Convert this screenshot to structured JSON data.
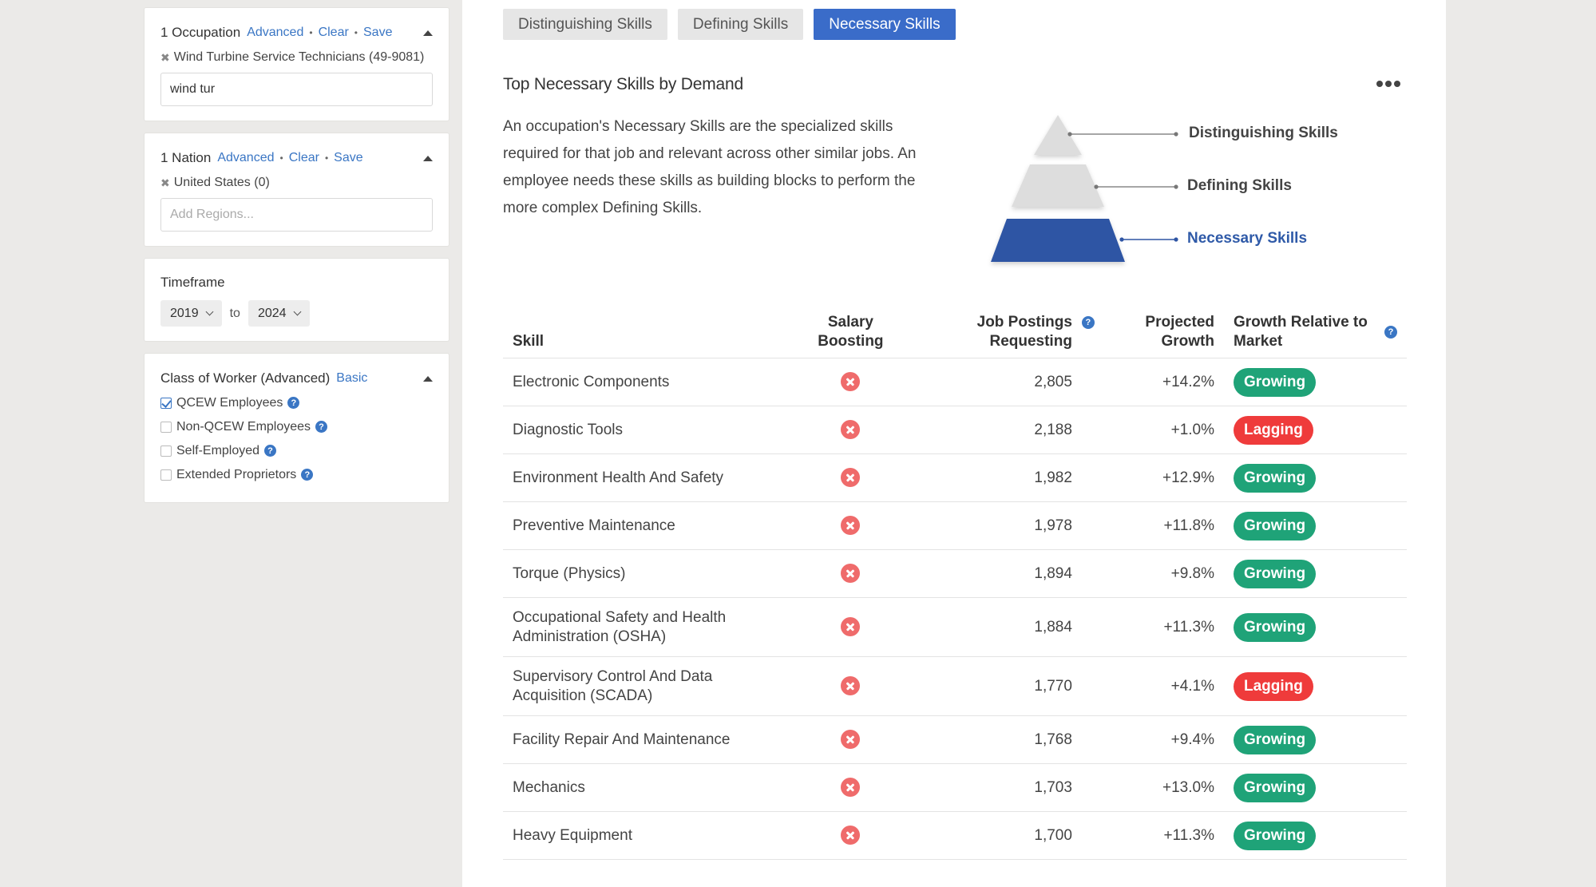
{
  "sidebar": {
    "occupation": {
      "title": "1 Occupation",
      "advanced": "Advanced",
      "clear": "Clear",
      "save": "Save",
      "selected": "Wind Turbine Service Technicians (49-9081)",
      "input_value": "wind tur"
    },
    "region": {
      "title": "1 Nation",
      "advanced": "Advanced",
      "clear": "Clear",
      "save": "Save",
      "selected": "United States (0)",
      "input_placeholder": "Add Regions..."
    },
    "timeframe": {
      "label": "Timeframe",
      "from": "2019",
      "to_label": "to",
      "to": "2024"
    },
    "class_of_worker": {
      "title": "Class of Worker (Advanced)",
      "basic": "Basic",
      "options": [
        {
          "label": "QCEW Employees",
          "checked": true
        },
        {
          "label": "Non-QCEW Employees",
          "checked": false
        },
        {
          "label": "Self-Employed",
          "checked": false
        },
        {
          "label": "Extended Proprietors",
          "checked": false
        }
      ]
    }
  },
  "main": {
    "tabs": [
      {
        "label": "Distinguishing Skills",
        "active": false
      },
      {
        "label": "Defining Skills",
        "active": false
      },
      {
        "label": "Necessary Skills",
        "active": true
      }
    ],
    "section_title": "Top Necessary Skills by Demand",
    "description": "An occupation's Necessary Skills are the specialized skills required for that job and relevant across other similar jobs. An employee needs these skills as building blocks to perform the more complex Defining Skills.",
    "pyramid": {
      "levels": [
        {
          "label": "Distinguishing Skills",
          "color": "#dddddd"
        },
        {
          "label": "Defining Skills",
          "color": "#dddddd"
        },
        {
          "label": "Necessary Skills",
          "color": "#2f55a4"
        }
      ]
    },
    "table": {
      "headers": {
        "skill": "Skill",
        "salary": "Salary Boosting",
        "postings": "Job Postings Requesting",
        "growth": "Projected Growth",
        "market": "Growth Relative to Market"
      },
      "rows": [
        {
          "skill": "Electronic Components",
          "postings": "2,805",
          "growth": "+14.2%",
          "market": "Growing"
        },
        {
          "skill": "Diagnostic Tools",
          "postings": "2,188",
          "growth": "+1.0%",
          "market": "Lagging"
        },
        {
          "skill": "Environment Health And Safety",
          "postings": "1,982",
          "growth": "+12.9%",
          "market": "Growing"
        },
        {
          "skill": "Preventive Maintenance",
          "postings": "1,978",
          "growth": "+11.8%",
          "market": "Growing"
        },
        {
          "skill": "Torque (Physics)",
          "postings": "1,894",
          "growth": "+9.8%",
          "market": "Growing"
        },
        {
          "skill": "Occupational Safety and Health Administration (OSHA)",
          "postings": "1,884",
          "growth": "+11.3%",
          "market": "Growing"
        },
        {
          "skill": "Supervisory Control And Data Acquisition (SCADA)",
          "postings": "1,770",
          "growth": "+4.1%",
          "market": "Lagging"
        },
        {
          "skill": "Facility Repair And Maintenance",
          "postings": "1,768",
          "growth": "+9.4%",
          "market": "Growing"
        },
        {
          "skill": "Mechanics",
          "postings": "1,703",
          "growth": "+13.0%",
          "market": "Growing"
        },
        {
          "skill": "Heavy Equipment",
          "postings": "1,700",
          "growth": "+11.3%",
          "market": "Growing"
        }
      ]
    }
  }
}
